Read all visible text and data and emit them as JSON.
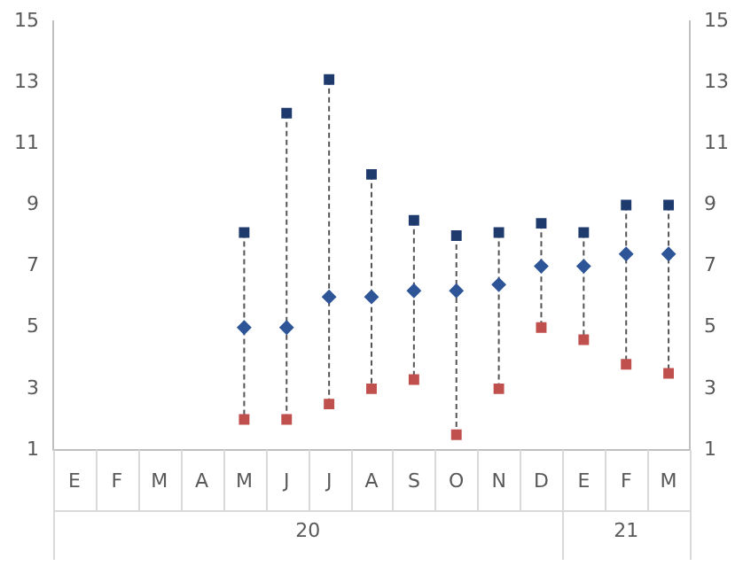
{
  "chart_data": {
    "type": "scatter",
    "categories": [
      "E",
      "F",
      "M",
      "A",
      "M",
      "J",
      "J",
      "A",
      "S",
      "O",
      "N",
      "D",
      "E",
      "F",
      "M"
    ],
    "series": [
      {
        "color": "#1f3b6e",
        "marker": "square",
        "values": [
          null,
          null,
          null,
          null,
          8.1,
          12,
          13.1,
          10,
          8.5,
          8,
          8.1,
          8.4,
          8.1,
          9,
          9
        ]
      },
      {
        "color": "#2e5597",
        "marker": "diamond",
        "values": [
          null,
          null,
          null,
          null,
          5,
          5,
          6,
          6,
          6.2,
          6.2,
          6.4,
          7,
          7,
          7.4,
          7.4
        ]
      },
      {
        "color": "#c0504d",
        "marker": "square",
        "values": [
          null,
          null,
          null,
          null,
          2,
          2,
          2.5,
          3,
          3.3,
          1.5,
          3,
          5,
          4.6,
          3.8,
          3.5
        ]
      }
    ],
    "line_style": "dashed",
    "ylim": [
      1,
      15
    ],
    "yticks": [
      1,
      3,
      5,
      7,
      9,
      11,
      13,
      15
    ],
    "y2lim": [
      1,
      15
    ],
    "y2ticks": [
      1,
      3,
      5,
      7,
      9,
      11,
      13,
      15
    ],
    "annotations": [
      "20",
      "21"
    ],
    "grid": "x",
    "legend": false
  }
}
